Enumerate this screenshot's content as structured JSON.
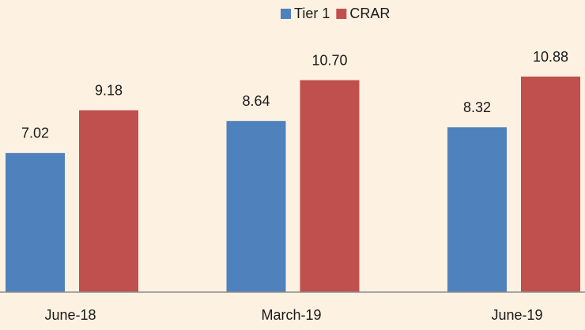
{
  "chart_data": {
    "type": "bar",
    "categories": [
      "June-18",
      "March-19",
      "June-19"
    ],
    "series": [
      {
        "name": "Tier 1",
        "color": "#4f81bd",
        "values": [
          7.02,
          8.64,
          8.32
        ],
        "value_labels": [
          "7.02",
          "8.64",
          "8.32"
        ]
      },
      {
        "name": "CRAR",
        "color": "#c0504d",
        "values": [
          9.18,
          10.7,
          10.88
        ],
        "value_labels": [
          "9.18",
          "10.70",
          "10.88"
        ]
      }
    ],
    "legend": "top"
  }
}
